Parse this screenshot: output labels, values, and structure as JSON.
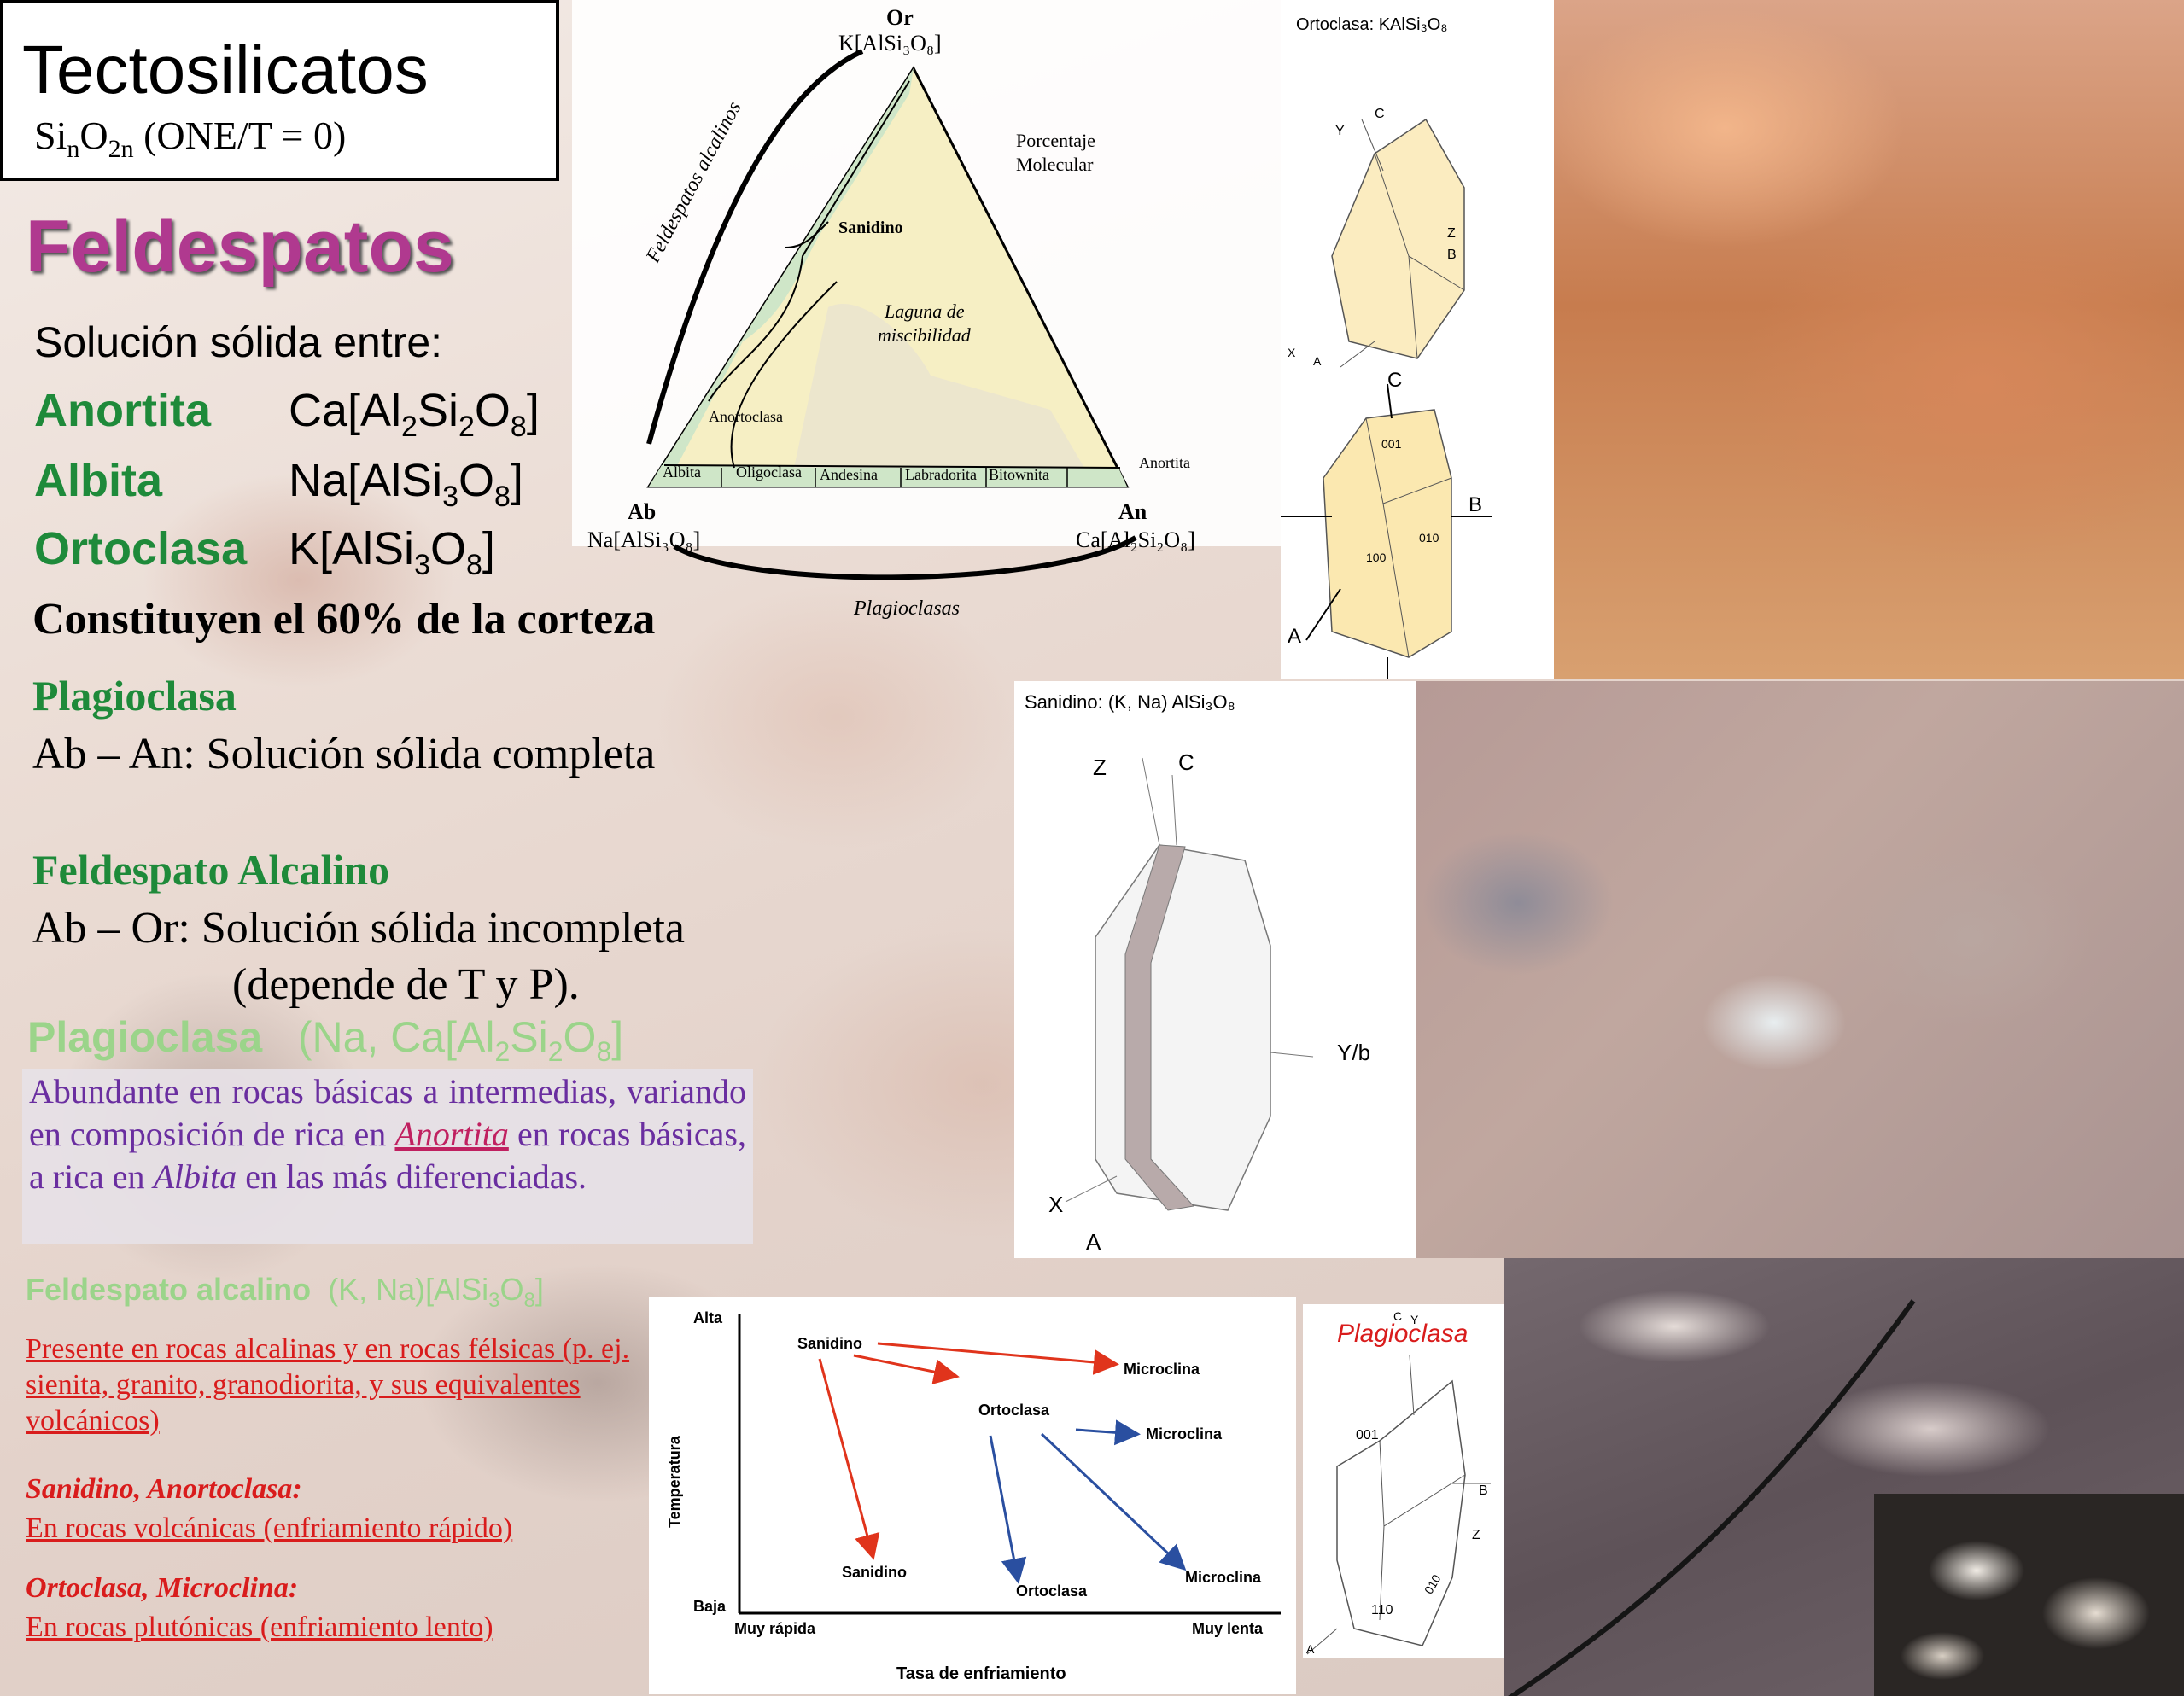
{
  "header": {
    "title": "Tectosilicatos",
    "formula_si": "Si",
    "formula_n1": "n",
    "formula_o": "O",
    "formula_2n": "2n",
    "formula_rest": " (ONE/T = 0)"
  },
  "section_title": "Feldespatos",
  "solution_intro": "Solución sólida entre:",
  "endmembers": [
    {
      "name": "Anortita",
      "f1": "Ca[Al",
      "s1": "2",
      "f2": "Si",
      "s2": "2",
      "f3": "O",
      "s3": "8",
      "f4": "]"
    },
    {
      "name": "Albita",
      "f1": "Na[AlSi",
      "s1": "3",
      "f2": "O",
      "s2": "8",
      "f3": "]",
      "s3": "",
      "f4": ""
    },
    {
      "name": "Ortoclasa",
      "f1": "K[AlSi",
      "s1": "3",
      "f2": "O",
      "s2": "8",
      "f3": "]",
      "s3": "",
      "f4": ""
    }
  ],
  "crust_text": "Constituyen el 60% de la corteza",
  "plagioclase_block": {
    "heading": "Plagioclasa",
    "line": "Ab – An:  Solución sólida completa"
  },
  "alkali_block": {
    "heading": "Feldespato Alcalino",
    "line1": "Ab – Or:  Solución sólida incompleta",
    "line2": "(depende de T y P)."
  },
  "plag2": {
    "label": "Plagioclasa",
    "formula_a": "(Na, Ca[Al",
    "s1": "2",
    "formula_b": "Si",
    "s2": "2",
    "formula_c": "O",
    "s3": "8",
    "formula_d": "]"
  },
  "purple_para": {
    "p1": "Abundante en rocas básicas a intermedias, variando en composición de rica en ",
    "anortita": "Anortita",
    "p2": " en rocas básicas, a rica en ",
    "albita": "Albita",
    "p3": " en las más diferenciadas."
  },
  "alkali2": {
    "label": "Feldespato alcalino",
    "formula_a": "(K, Na)[AlSi",
    "s1": "3",
    "formula_b": "O",
    "s2": "8",
    "formula_c": "]"
  },
  "red_block": {
    "presente": "Presente en rocas alcalinas y en rocas félsicas (p. ej. sienita, granito, granodiorita, y sus equivalentes volcánicos)",
    "sanidino_h": "Sanidino, Anortoclasa:",
    "sanidino_t": "En rocas volcánicas (enfriamiento rápido)",
    "ortoclasa_h": "Ortoclasa, Microclina:",
    "ortoclasa_t": "En rocas plutónicas (enfriamiento lento)"
  },
  "ternary": {
    "or_label": "Or",
    "or_formula": "K[AlSi₃O₈]",
    "ab_label": "Ab",
    "ab_formula": "Na[AlSi₃O₈]",
    "an_label": "An",
    "an_formula": "Ca[Al₂Si₂O₈]",
    "alkali_side": "Feldespatos alcalinos",
    "pct": "Porcentaje",
    "mol": "Molecular",
    "sanidino": "Sanidino",
    "laguna1": "Laguna de",
    "laguna2": "miscibilidad",
    "anortoclasa": "Anortoclasa",
    "albita": "Albita",
    "oligoclasa": "Oligoclasa",
    "andesina": "Andesina",
    "labradorita": "Labradorita",
    "bitownita": "Bitownita",
    "anortita": "Anortita",
    "plagioclasas": "Plagioclasas"
  },
  "orthoclase_crystal": {
    "title": "Ortoclasa: KAlSi₃O₈",
    "y": "Y",
    "c": "C",
    "z": "Z",
    "b": "B",
    "x": "X",
    "a": "A"
  },
  "orthoclase_crystal2": {
    "c": "C",
    "b": "B",
    "a": "A",
    "f001": "001",
    "f010": "010",
    "f100": "100"
  },
  "sanidine_crystal": {
    "title": "Sanidino: (K, Na) AlSi₃O₈",
    "z": "Z",
    "c": "C",
    "yb": "Y/b",
    "x": "X",
    "a": "A"
  },
  "plag_crystal": {
    "title": "Plagioclasa",
    "c": "C",
    "y": "Y",
    "f001": "001",
    "b": "B",
    "z": "Z",
    "f010": "010",
    "f110": "110",
    "a": "A"
  },
  "cooling_chart": {
    "ylabel": "Temperatura",
    "xlabel": "Tasa de enfriamiento",
    "y_high": "Alta",
    "y_low": "Baja",
    "x_fast": "Muy rápida",
    "x_slow": "Muy lenta",
    "nodes": {
      "sanidino_top": "Sanidino",
      "microclina_top": "Microclina",
      "ortoclasa_mid": "Ortoclasa",
      "microclina_mid": "Microclina",
      "sanidino_bot": "Sanidino",
      "ortoclasa_bot": "Ortoclasa",
      "microclina_bot": "Microclina"
    },
    "red": "#e0341c",
    "blue": "#2a4fa0"
  }
}
